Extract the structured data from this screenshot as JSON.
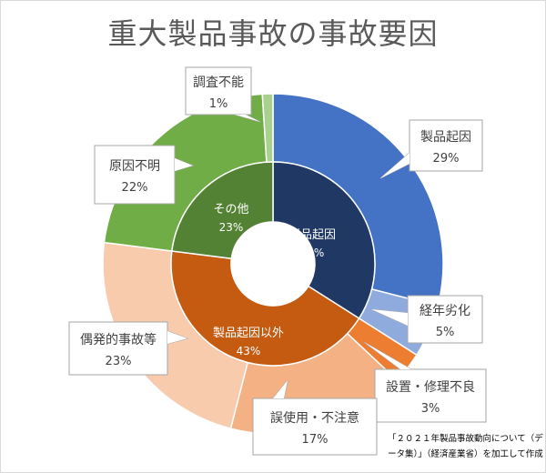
{
  "chart_data": {
    "type": "sunburst-donut",
    "title": "重大製品事故の事故要因",
    "inner": [
      {
        "label": "製品起因",
        "percent": 34,
        "value_label": "34%",
        "color": "#203864"
      },
      {
        "label": "製品起因以外",
        "percent": 43,
        "value_label": "43%",
        "color": "#c55a11"
      },
      {
        "label": "その他",
        "percent": 23,
        "value_label": "23%",
        "color": "#548235"
      }
    ],
    "outer": [
      {
        "label": "製品起因",
        "percent": 29,
        "value_label": "29%",
        "color": "#4472c4"
      },
      {
        "label": "経年劣化",
        "percent": 5,
        "value_label": "5%",
        "color": "#8faadc"
      },
      {
        "label": "設置・修理不良",
        "percent": 3,
        "value_label": "3%",
        "color": "#ed7d31"
      },
      {
        "label": "誤使用・不注意",
        "percent": 17,
        "value_label": "17%",
        "color": "#f4b183"
      },
      {
        "label": "偶発的事故等",
        "percent": 23,
        "value_label": "23%",
        "color": "#f8cbad"
      },
      {
        "label": "原因不明",
        "percent": 22,
        "value_label": "22%",
        "color": "#70ad47"
      },
      {
        "label": "調査不能",
        "percent": 1,
        "value_label": "1%",
        "color": "#a9d18e"
      }
    ],
    "source_note": "「２０２１年製品事故動向について（データ集）」（経済産業省）を加工して作成"
  }
}
